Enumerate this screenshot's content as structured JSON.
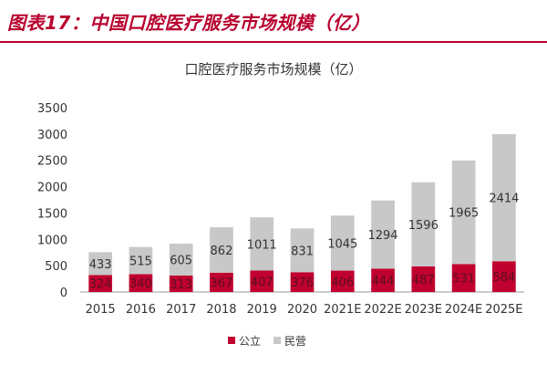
{
  "figure": {
    "label": "图表17：中国口腔医疗服务市场规模（亿）"
  },
  "chart_data": {
    "type": "bar",
    "stacked": true,
    "title": "口腔医疗服务市场规模（亿）",
    "categories": [
      "2015",
      "2016",
      "2017",
      "2018",
      "2019",
      "2020",
      "2021E",
      "2022E",
      "2023E",
      "2024E",
      "2025E"
    ],
    "series": [
      {
        "name": "公立",
        "color": "#c0002f",
        "values": [
          324,
          340,
          313,
          367,
          407,
          376,
          406,
          444,
          487,
          531,
          584
        ]
      },
      {
        "name": "民营",
        "color": "#c8c8c8",
        "values": [
          433,
          515,
          605,
          862,
          1011,
          831,
          1045,
          1294,
          1596,
          1965,
          2414
        ]
      }
    ],
    "ylim": [
      0,
      3500
    ],
    "yticks": [
      0,
      500,
      1000,
      1500,
      2000,
      2500,
      3000,
      3500
    ],
    "xlabel": "",
    "ylabel": "",
    "legend_position": "bottom-center",
    "grid": false
  }
}
